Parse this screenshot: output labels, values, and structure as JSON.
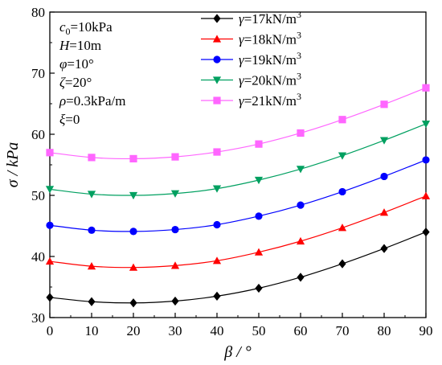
{
  "chart_data": {
    "type": "line",
    "xlabel": "β / °",
    "ylabel": "σ / kPa",
    "xlim": [
      0,
      90
    ],
    "ylim": [
      30,
      80
    ],
    "x_ticks": [
      "0",
      "10",
      "20",
      "30",
      "40",
      "50",
      "60",
      "70",
      "80",
      "90"
    ],
    "y_ticks": [
      "30",
      "40",
      "50",
      "60",
      "70",
      "80"
    ],
    "x": [
      0,
      10,
      20,
      30,
      40,
      50,
      60,
      70,
      80,
      90
    ],
    "grid": false,
    "legend_position": "top-right",
    "annotations": [
      {
        "main": "c",
        "sub": "0",
        "rest": "=10kPa"
      },
      {
        "main": "H",
        "sub": "",
        "rest": "=10m"
      },
      {
        "main": "φ",
        "sub": "",
        "rest": "=10°"
      },
      {
        "main": "ζ",
        "sub": "",
        "rest": "=20°"
      },
      {
        "main": "ρ",
        "sub": "",
        "rest": "=0.3kPa/m"
      },
      {
        "main": "ξ",
        "sub": "",
        "rest": "=0"
      }
    ],
    "series": [
      {
        "name": "γ=17kN/m3",
        "name_main": "γ",
        "name_mid": "=17kN/m",
        "name_sup": "3",
        "color": "#000000",
        "marker": "diamond",
        "values": [
          33.3,
          32.6,
          32.4,
          32.7,
          33.5,
          34.8,
          36.6,
          38.8,
          41.3,
          44.0
        ]
      },
      {
        "name": "γ=18kN/m3",
        "name_main": "γ",
        "name_mid": "=18kN/m",
        "name_sup": "3",
        "color": "#ff0000",
        "marker": "triangle-up",
        "values": [
          39.2,
          38.4,
          38.2,
          38.5,
          39.3,
          40.7,
          42.5,
          44.7,
          47.2,
          49.9
        ]
      },
      {
        "name": "γ=19kN/m3",
        "name_main": "γ",
        "name_mid": "=19kN/m",
        "name_sup": "3",
        "color": "#0000ff",
        "marker": "circle",
        "values": [
          45.1,
          44.3,
          44.1,
          44.4,
          45.2,
          46.6,
          48.4,
          50.6,
          53.1,
          55.8
        ]
      },
      {
        "name": "γ=20kN/m3",
        "name_main": "γ",
        "name_mid": "=20kN/m",
        "name_sup": "3",
        "color": "#00a060",
        "marker": "triangle-down",
        "values": [
          51.0,
          50.2,
          50.0,
          50.3,
          51.1,
          52.5,
          54.3,
          56.5,
          59.0,
          61.7
        ]
      },
      {
        "name": "γ=21kN/m3",
        "name_main": "γ",
        "name_mid": "=21kN/m",
        "name_sup": "3",
        "color": "#ff66ff",
        "marker": "square",
        "values": [
          57.0,
          56.2,
          56.0,
          56.3,
          57.1,
          58.4,
          60.2,
          62.4,
          64.9,
          67.6
        ]
      }
    ]
  }
}
